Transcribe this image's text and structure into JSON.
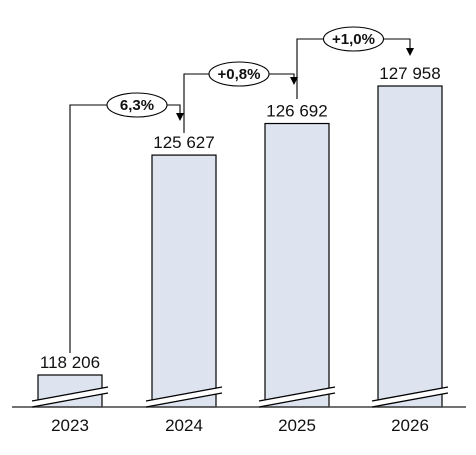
{
  "chart_data": {
    "type": "bar",
    "categories": [
      "2023",
      "2024",
      "2025",
      "2026"
    ],
    "values": [
      118206,
      125627,
      126692,
      127958
    ],
    "value_labels": [
      "118 206",
      "125 627",
      "126 692",
      "127 958"
    ],
    "axis_break": true,
    "changes": [
      {
        "from": "2023",
        "to": "2024",
        "label": "6,3%"
      },
      {
        "from": "2024",
        "to": "2025",
        "label": "+0,8%"
      },
      {
        "from": "2025",
        "to": "2026",
        "label": "+1,0%"
      }
    ],
    "colors": {
      "bar_fill": "#dde4f0",
      "bar_stroke": "#000000",
      "axis": "#444444"
    }
  }
}
